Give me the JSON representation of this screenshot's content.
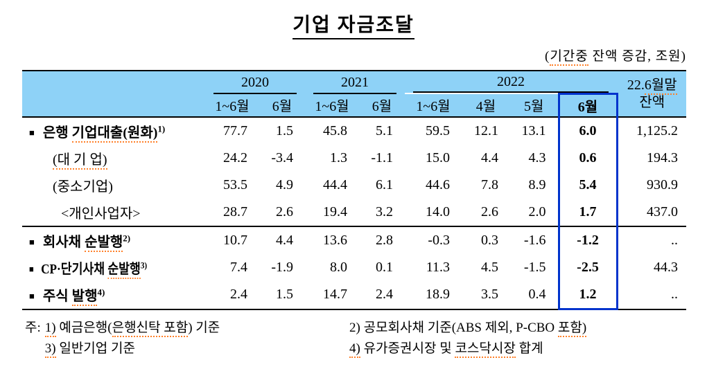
{
  "title": "기업 자금조달",
  "unit_note_segments": [
    {
      "t": "("
    },
    {
      "t": "기간중",
      "sq": true
    },
    {
      "t": " 잔액 증감, 조원)"
    }
  ],
  "colors": {
    "header_bg": "#8ED2F7",
    "highlight_box": "#0033CC",
    "squiggle": "#FF7F27"
  },
  "table": {
    "year_groups": [
      {
        "label": "2020",
        "span": 2
      },
      {
        "label": "2021",
        "span": 2
      },
      {
        "label": "2022",
        "span": 4
      }
    ],
    "month_headers": [
      {
        "label": "1~6월",
        "highlight": false
      },
      {
        "label": "6월",
        "highlight": false
      },
      {
        "label": "1~6월",
        "highlight": false
      },
      {
        "label": "6월",
        "highlight": false
      },
      {
        "label": "1~6월",
        "highlight": false
      },
      {
        "label": "4월",
        "highlight": false
      },
      {
        "label": "5월",
        "highlight": false
      },
      {
        "label": "6월",
        "highlight": true
      }
    ],
    "balance_header": {
      "line1_segments": [
        {
          "t": "22."
        },
        {
          "t": "6월말",
          "sq": true
        }
      ],
      "line2": "잔액"
    },
    "highlight_value_index": 7,
    "rows": [
      {
        "bullet": true,
        "bold": true,
        "indent": 0,
        "condensed": false,
        "label_segments": [
          {
            "t": "은행 "
          },
          {
            "t": "기업대출(원화)",
            "sq": true
          }
        ],
        "sup": "1)",
        "values": [
          "77.7",
          "1.5",
          "45.8",
          "5.1",
          "59.5",
          "12.1",
          "13.1",
          "6.0"
        ],
        "balance": "1,125.2",
        "separator_below": false
      },
      {
        "bullet": false,
        "bold": false,
        "indent": 1,
        "condensed": false,
        "label_segments": [
          {
            "t": "(대 기 업)",
            "sq": true
          }
        ],
        "sup": "",
        "values": [
          "24.2",
          "-3.4",
          "1.3",
          "-1.1",
          "15.0",
          "4.4",
          "4.3",
          "0.6"
        ],
        "balance": "194.3",
        "separator_below": false
      },
      {
        "bullet": false,
        "bold": false,
        "indent": 1,
        "condensed": false,
        "label_segments": [
          {
            "t": "(중소기업)"
          }
        ],
        "sup": "",
        "values": [
          "53.5",
          "4.9",
          "44.4",
          "6.1",
          "44.6",
          "7.8",
          "8.9",
          "5.4"
        ],
        "balance": "930.9",
        "separator_below": false
      },
      {
        "bullet": false,
        "bold": false,
        "indent": 2,
        "condensed": false,
        "label_segments": [
          {
            "t": "<개인사업자>"
          }
        ],
        "sup": "",
        "values": [
          "28.7",
          "2.6",
          "19.4",
          "3.2",
          "14.0",
          "2.6",
          "2.0",
          "1.7"
        ],
        "balance": "437.0",
        "separator_below": true
      },
      {
        "bullet": true,
        "bold": true,
        "indent": 0,
        "condensed": false,
        "label_segments": [
          {
            "t": "회사채 "
          },
          {
            "t": "순발행",
            "sq": true
          }
        ],
        "sup": "2)",
        "values": [
          "10.7",
          "4.4",
          "13.6",
          "2.8",
          "-0.3",
          "0.3",
          "-1.6",
          "-1.2"
        ],
        "balance": "..",
        "separator_below": false
      },
      {
        "bullet": true,
        "bold": true,
        "indent": 0,
        "condensed": true,
        "label_segments": [
          {
            "t": "CP·단기사채 "
          },
          {
            "t": "순발행",
            "sq": true
          }
        ],
        "sup": "3)",
        "values": [
          "7.4",
          "-1.9",
          "8.0",
          "0.1",
          "11.3",
          "4.5",
          "-1.5",
          "-2.5"
        ],
        "balance": "44.3",
        "separator_below": false
      },
      {
        "bullet": true,
        "bold": true,
        "indent": 0,
        "condensed": false,
        "label_segments": [
          {
            "t": "주식 "
          },
          {
            "t": "발행",
            "sq": true
          }
        ],
        "sup": "4)",
        "values": [
          "2.4",
          "1.5",
          "14.7",
          "2.4",
          "18.9",
          "3.5",
          "0.4",
          "1.2"
        ],
        "balance": "..",
        "separator_below": false
      }
    ]
  },
  "footnotes": {
    "prefix": "주:",
    "left": [
      {
        "segments": [
          {
            "t": "1)",
            "sq": true
          },
          {
            "t": " 예금은행("
          },
          {
            "t": "은행신탁 포함",
            "sq": true
          },
          {
            "t": ") 기준"
          }
        ]
      },
      {
        "segments": [
          {
            "t": "3)",
            "sq": true
          },
          {
            "t": " 일반기업 기준"
          }
        ]
      }
    ],
    "right": [
      {
        "segments": [
          {
            "t": "2) 공모회사채 기준(ABS 제외, P-CBO "
          },
          {
            "t": "포함)",
            "sq": true
          }
        ]
      },
      {
        "segments": [
          {
            "t": "4)",
            "sq": true
          },
          {
            "t": " 유가증권시장 및 "
          },
          {
            "t": "코스닥시장",
            "sq": true
          },
          {
            "t": " 합계"
          }
        ]
      }
    ]
  }
}
